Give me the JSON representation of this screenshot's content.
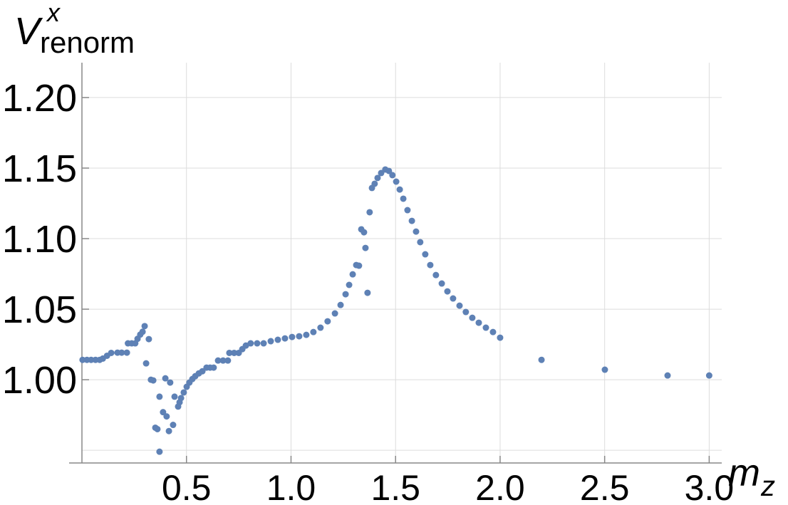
{
  "chart_data": {
    "type": "scatter",
    "ylabel": "V",
    "ylabel_sup": "x",
    "ylabel_sub": "renorm",
    "xlabel": "m",
    "xlabel_sub": "z",
    "color": "#5e81b5",
    "grid": true,
    "xlim": [
      0,
      3.06
    ],
    "ylim": [
      0.941,
      1.2247
    ],
    "xticks": [
      {
        "value": 0.5,
        "label": "0.5"
      },
      {
        "value": 1,
        "label": "1.0"
      },
      {
        "value": 1.5,
        "label": "1.5"
      },
      {
        "value": 2,
        "label": "2.0"
      },
      {
        "value": 2.5,
        "label": "2.5"
      },
      {
        "value": 3,
        "label": "3.0"
      }
    ],
    "yticks": [
      {
        "value": 1,
        "label": "1.00"
      },
      {
        "value": 1.05,
        "label": "1.05"
      },
      {
        "value": 1.1,
        "label": "1.10"
      },
      {
        "value": 1.15,
        "label": "1.15"
      },
      {
        "value": 1.2,
        "label": "1.20"
      }
    ],
    "extra_ygrid": [
      0.95
    ],
    "x": [
      0.003,
      0.024,
      0.044,
      0.065,
      0.085,
      0.1,
      0.12,
      0.14,
      0.17,
      0.19,
      0.215,
      0.22,
      0.238,
      0.255,
      0.266,
      0.279,
      0.29,
      0.3,
      0.32,
      0.307,
      0.33,
      0.341,
      0.351,
      0.361,
      0.371,
      0.371,
      0.388,
      0.399,
      0.405,
      0.416,
      0.422,
      0.436,
      0.443,
      0.46,
      0.467,
      0.474,
      0.487,
      0.501,
      0.514,
      0.528,
      0.542,
      0.559,
      0.576,
      0.596,
      0.613,
      0.63,
      0.651,
      0.675,
      0.698,
      0.705,
      0.728,
      0.75,
      0.767,
      0.784,
      0.807,
      0.838,
      0.869,
      0.903,
      0.937,
      0.971,
      1.005,
      1.039,
      1.073,
      1.107,
      1.141,
      1.175,
      1.21,
      1.237,
      1.261,
      1.278,
      1.295,
      1.312,
      1.325,
      1.336,
      1.349,
      1.356,
      1.366,
      1.376,
      1.387,
      1.4,
      1.414,
      1.431,
      1.451,
      1.468,
      1.485,
      1.503,
      1.52,
      1.537,
      1.557,
      1.578,
      1.598,
      1.618,
      1.642,
      1.666,
      1.693,
      1.721,
      1.748,
      1.775,
      1.806,
      1.836,
      1.867,
      1.898,
      1.932,
      1.966,
      2.0,
      2.198,
      2.501,
      2.801,
      3.0
    ],
    "values": [
      1.0141,
      1.0141,
      1.0141,
      1.0141,
      1.0141,
      1.015,
      1.017,
      1.019,
      1.0192,
      1.0192,
      1.0192,
      1.0258,
      1.0258,
      1.0258,
      1.029,
      1.032,
      1.034,
      1.038,
      1.0288,
      1.0116,
      1.0,
      0.9995,
      0.966,
      0.965,
      0.988,
      0.949,
      0.977,
      1.001,
      0.974,
      0.9636,
      0.998,
      0.968,
      0.988,
      0.981,
      0.984,
      0.987,
      0.991,
      0.995,
      0.998,
      1.0005,
      1.0025,
      1.0045,
      1.006,
      1.0086,
      1.0086,
      1.0086,
      1.0136,
      1.0136,
      1.0136,
      1.019,
      1.019,
      1.019,
      1.0217,
      1.0242,
      1.0258,
      1.0258,
      1.0258,
      1.0273,
      1.0283,
      1.0293,
      1.0303,
      1.0308,
      1.0318,
      1.0338,
      1.0369,
      1.0414,
      1.047,
      1.053,
      1.0606,
      1.0672,
      1.0747,
      1.0813,
      1.0808,
      1.1066,
      1.1045,
      1.0934,
      1.0616,
      1.1187,
      1.1359,
      1.1389,
      1.143,
      1.1465,
      1.149,
      1.148,
      1.145,
      1.1404,
      1.1348,
      1.1283,
      1.1202,
      1.1126,
      1.105,
      1.0975,
      1.0889,
      1.0813,
      1.0742,
      1.0682,
      1.0626,
      1.0576,
      1.0525,
      1.048,
      1.0439,
      1.0404,
      1.0369,
      1.0338,
      1.0298,
      1.0141,
      1.0071,
      1.003,
      1.003
    ]
  }
}
